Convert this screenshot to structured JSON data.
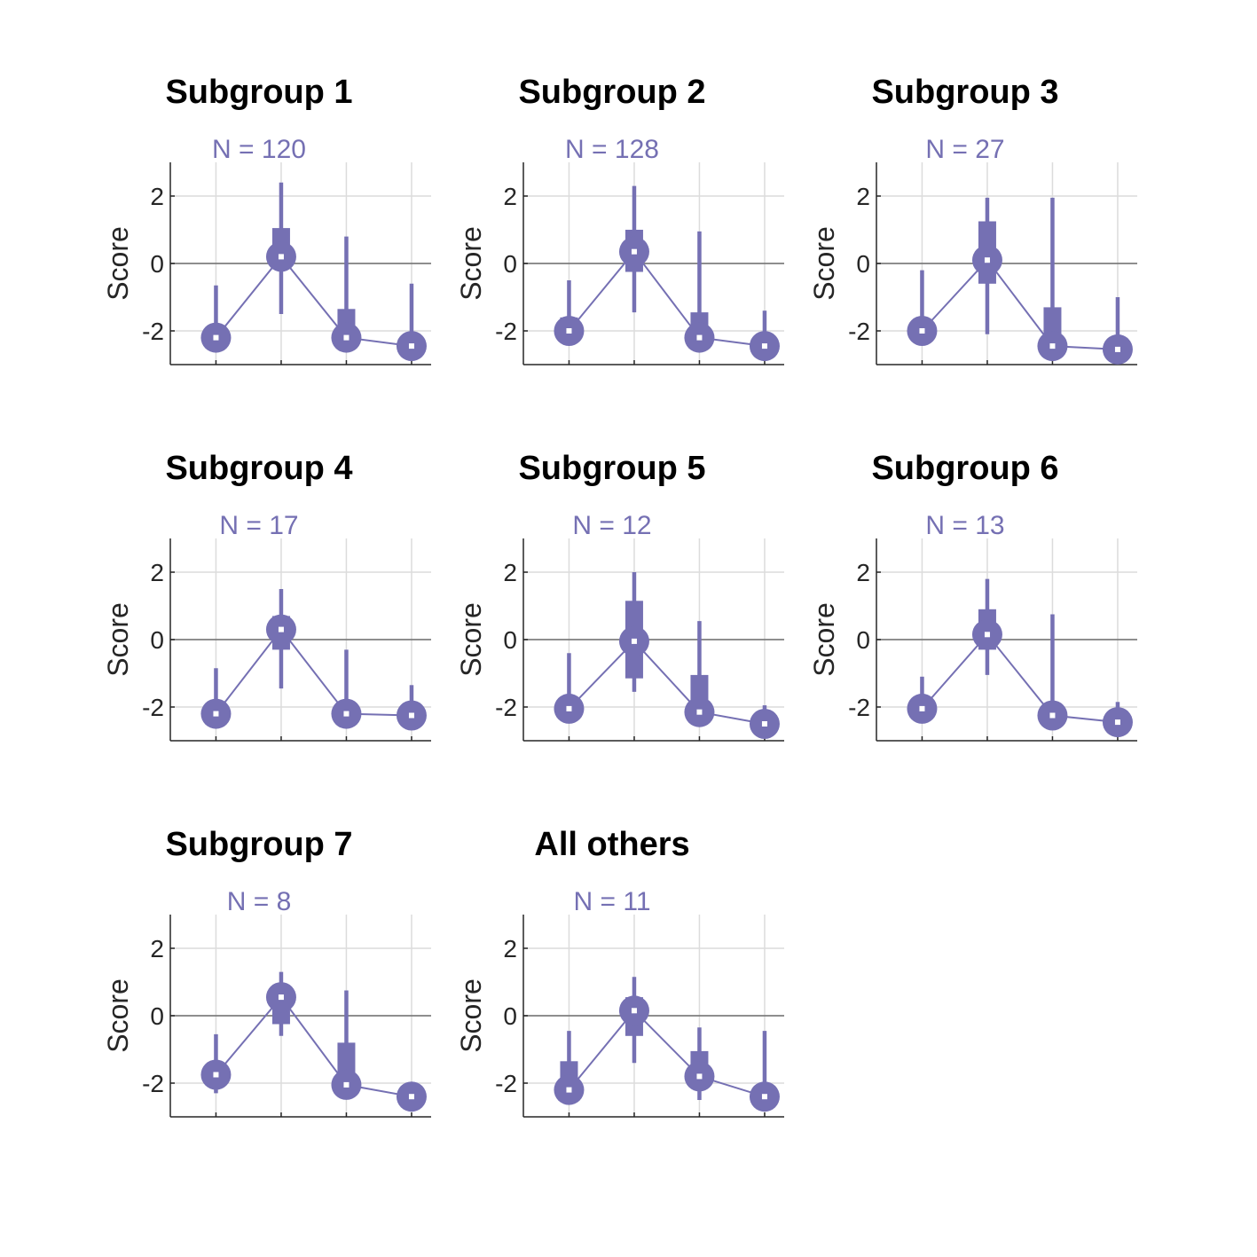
{
  "colors": {
    "accent": "#7570b3",
    "axis": "#262626",
    "grid": "#dcdcdc",
    "zero_line": "#6e6e6e",
    "marker_center": "#ffffff"
  },
  "chart_data": [
    {
      "type": "line",
      "title": "Subgroup 1",
      "subtitle": "N = 120",
      "ylabel": "Score",
      "ylim": [
        -3,
        3
      ],
      "yticks": [
        -2,
        0,
        2
      ],
      "x": [
        1,
        2,
        3,
        4
      ],
      "grid": true,
      "median": [
        -2.2,
        0.2,
        -2.2,
        -2.45
      ],
      "whisker_low": [
        -2.2,
        -1.5,
        -2.2,
        -2.45
      ],
      "whisker_high": [
        -0.65,
        2.4,
        0.8,
        -0.6
      ],
      "box_low": [
        -2.2,
        -0.1,
        -2.2,
        -2.45
      ],
      "box_high": [
        -2.2,
        1.05,
        -1.35,
        -2.45
      ]
    },
    {
      "type": "line",
      "title": "Subgroup 2",
      "subtitle": "N = 128",
      "ylabel": "Score",
      "ylim": [
        -3,
        3
      ],
      "yticks": [
        -2,
        0,
        2
      ],
      "x": [
        1,
        2,
        3,
        4
      ],
      "grid": true,
      "median": [
        -2.0,
        0.35,
        -2.2,
        -2.45
      ],
      "whisker_low": [
        -2.0,
        -1.45,
        -2.2,
        -2.45
      ],
      "whisker_high": [
        -0.5,
        2.3,
        0.95,
        -1.4
      ],
      "box_low": [
        -2.0,
        -0.25,
        -2.2,
        -2.45
      ],
      "box_high": [
        -1.6,
        1.0,
        -1.45,
        -2.45
      ]
    },
    {
      "type": "line",
      "title": "Subgroup 3",
      "subtitle": "N = 27",
      "ylabel": "Score",
      "ylim": [
        -3,
        3
      ],
      "yticks": [
        -2,
        0,
        2
      ],
      "x": [
        1,
        2,
        3,
        4
      ],
      "grid": true,
      "median": [
        -2.0,
        0.1,
        -2.45,
        -2.55
      ],
      "whisker_low": [
        -2.0,
        -2.1,
        -2.45,
        -2.55
      ],
      "whisker_high": [
        -0.2,
        1.95,
        1.95,
        -1.0
      ],
      "box_low": [
        -2.0,
        -0.6,
        -2.45,
        -2.55
      ],
      "box_high": [
        -2.0,
        1.25,
        -1.3,
        -2.55
      ]
    },
    {
      "type": "line",
      "title": "Subgroup 4",
      "subtitle": "N = 17",
      "ylabel": "Score",
      "ylim": [
        -3,
        3
      ],
      "yticks": [
        -2,
        0,
        2
      ],
      "x": [
        1,
        2,
        3,
        4
      ],
      "grid": true,
      "median": [
        -2.2,
        0.3,
        -2.2,
        -2.25
      ],
      "whisker_low": [
        -2.2,
        -1.45,
        -2.2,
        -2.25
      ],
      "whisker_high": [
        -0.85,
        1.5,
        -0.3,
        -1.35
      ],
      "box_low": [
        -2.2,
        -0.3,
        -2.2,
        -2.25
      ],
      "box_high": [
        -2.2,
        0.7,
        -2.2,
        -2.25
      ]
    },
    {
      "type": "line",
      "title": "Subgroup 5",
      "subtitle": "N = 12",
      "ylabel": "Score",
      "ylim": [
        -3,
        3
      ],
      "yticks": [
        -2,
        0,
        2
      ],
      "x": [
        1,
        2,
        3,
        4
      ],
      "grid": true,
      "median": [
        -2.05,
        -0.05,
        -2.15,
        -2.5
      ],
      "whisker_low": [
        -2.05,
        -1.55,
        -2.15,
        -2.5
      ],
      "whisker_high": [
        -0.4,
        2.0,
        0.55,
        -1.95
      ],
      "box_low": [
        -2.05,
        -1.15,
        -2.15,
        -2.5
      ],
      "box_high": [
        -2.05,
        1.15,
        -1.05,
        -2.5
      ]
    },
    {
      "type": "line",
      "title": "Subgroup 6",
      "subtitle": "N = 13",
      "ylabel": "Score",
      "ylim": [
        -3,
        3
      ],
      "yticks": [
        -2,
        0,
        2
      ],
      "x": [
        1,
        2,
        3,
        4
      ],
      "grid": true,
      "median": [
        -2.05,
        0.15,
        -2.25,
        -2.45
      ],
      "whisker_low": [
        -2.05,
        -1.05,
        -2.25,
        -2.45
      ],
      "whisker_high": [
        -1.1,
        1.8,
        0.75,
        -1.85
      ],
      "box_low": [
        -2.05,
        -0.3,
        -2.25,
        -2.45
      ],
      "box_high": [
        -2.05,
        0.9,
        -2.25,
        -2.45
      ]
    },
    {
      "type": "line",
      "title": "Subgroup 7",
      "subtitle": "N = 8",
      "ylabel": "Score",
      "ylim": [
        -3,
        3
      ],
      "yticks": [
        -2,
        0,
        2
      ],
      "x": [
        1,
        2,
        3,
        4
      ],
      "grid": true,
      "median": [
        -1.75,
        0.55,
        -2.05,
        -2.4
      ],
      "whisker_low": [
        -2.3,
        -0.6,
        -2.05,
        -2.4
      ],
      "whisker_high": [
        -0.55,
        1.3,
        0.75,
        -2.4
      ],
      "box_low": [
        -1.75,
        -0.25,
        -2.05,
        -2.4
      ],
      "box_high": [
        -1.4,
        0.85,
        -0.8,
        -2.4
      ]
    },
    {
      "type": "line",
      "title": "All others",
      "subtitle": "N = 11",
      "ylabel": "Score",
      "ylim": [
        -3,
        3
      ],
      "yticks": [
        -2,
        0,
        2
      ],
      "x": [
        1,
        2,
        3,
        4
      ],
      "grid": true,
      "median": [
        -2.2,
        0.15,
        -1.8,
        -2.4
      ],
      "whisker_low": [
        -2.2,
        -1.4,
        -2.5,
        -2.4
      ],
      "whisker_high": [
        -0.45,
        1.15,
        -0.35,
        -0.45
      ],
      "box_low": [
        -2.2,
        -0.6,
        -1.8,
        -2.4
      ],
      "box_high": [
        -1.35,
        0.55,
        -1.05,
        -2.4
      ]
    }
  ]
}
